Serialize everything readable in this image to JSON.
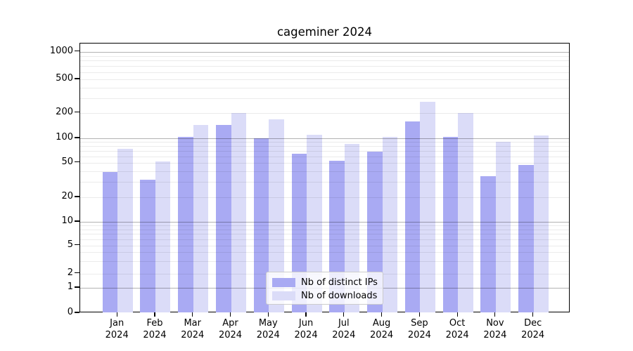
{
  "chart_data": {
    "type": "bar",
    "title": "cageminer 2024",
    "categories": [
      "Jan",
      "Feb",
      "Mar",
      "Apr",
      "May",
      "Jun",
      "Jul",
      "Aug",
      "Sep",
      "Oct",
      "Nov",
      "Dec"
    ],
    "category_year": "2024",
    "series": [
      {
        "name": "Nb of distinct IPs",
        "color": "#a9aaf3",
        "values": [
          39,
          32,
          103,
          144,
          100,
          64,
          53,
          69,
          159,
          103,
          35,
          47
        ]
      },
      {
        "name": "Nb of downloads",
        "color": "#dbdcf8",
        "values": [
          74,
          52,
          143,
          198,
          167,
          110,
          86,
          104,
          270,
          200,
          91,
          107
        ]
      }
    ],
    "yscale": "log-with-zero",
    "yticks": [
      0,
      1,
      2,
      5,
      10,
      20,
      50,
      100,
      200,
      500,
      1000
    ],
    "ylim": [
      0,
      1300
    ],
    "grid": true,
    "legend_position": "lower center"
  }
}
